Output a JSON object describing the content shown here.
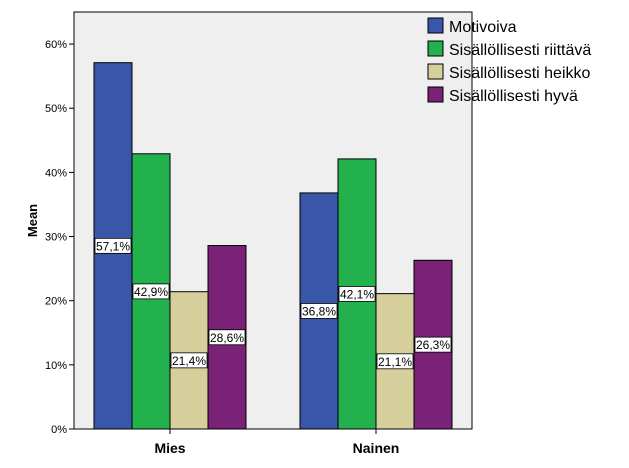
{
  "chart_data": {
    "type": "bar",
    "ylabel": "Mean",
    "xlabel": "",
    "categories": [
      "Mies",
      "Nainen"
    ],
    "ylim": [
      0,
      65
    ],
    "yticks": [
      0,
      10,
      20,
      30,
      40,
      50,
      60
    ],
    "ytick_labels": [
      "0%",
      "10%",
      "20%",
      "30%",
      "40%",
      "50%",
      "60%"
    ],
    "grid": false,
    "legend_position": "top-right",
    "plot_background": "#efefef",
    "series": [
      {
        "name": "Motivoiva",
        "color": "#3a56a8",
        "values": [
          57.1,
          36.8
        ],
        "labels": [
          "57,1%",
          "36,8%"
        ]
      },
      {
        "name": "Sisällöllisesti riittävä",
        "color": "#22b14c",
        "values": [
          42.9,
          42.1
        ],
        "labels": [
          "42,9%",
          "42,1%"
        ]
      },
      {
        "name": "Sisällöllisesti heikko",
        "color": "#d6cf9c",
        "values": [
          21.4,
          21.1
        ],
        "labels": [
          "21,4%",
          "21,1%"
        ]
      },
      {
        "name": "Sisällöllisesti hyvä",
        "color": "#7a2178",
        "values": [
          28.6,
          26.3
        ],
        "labels": [
          "28,6%",
          "26,3%"
        ]
      }
    ]
  }
}
